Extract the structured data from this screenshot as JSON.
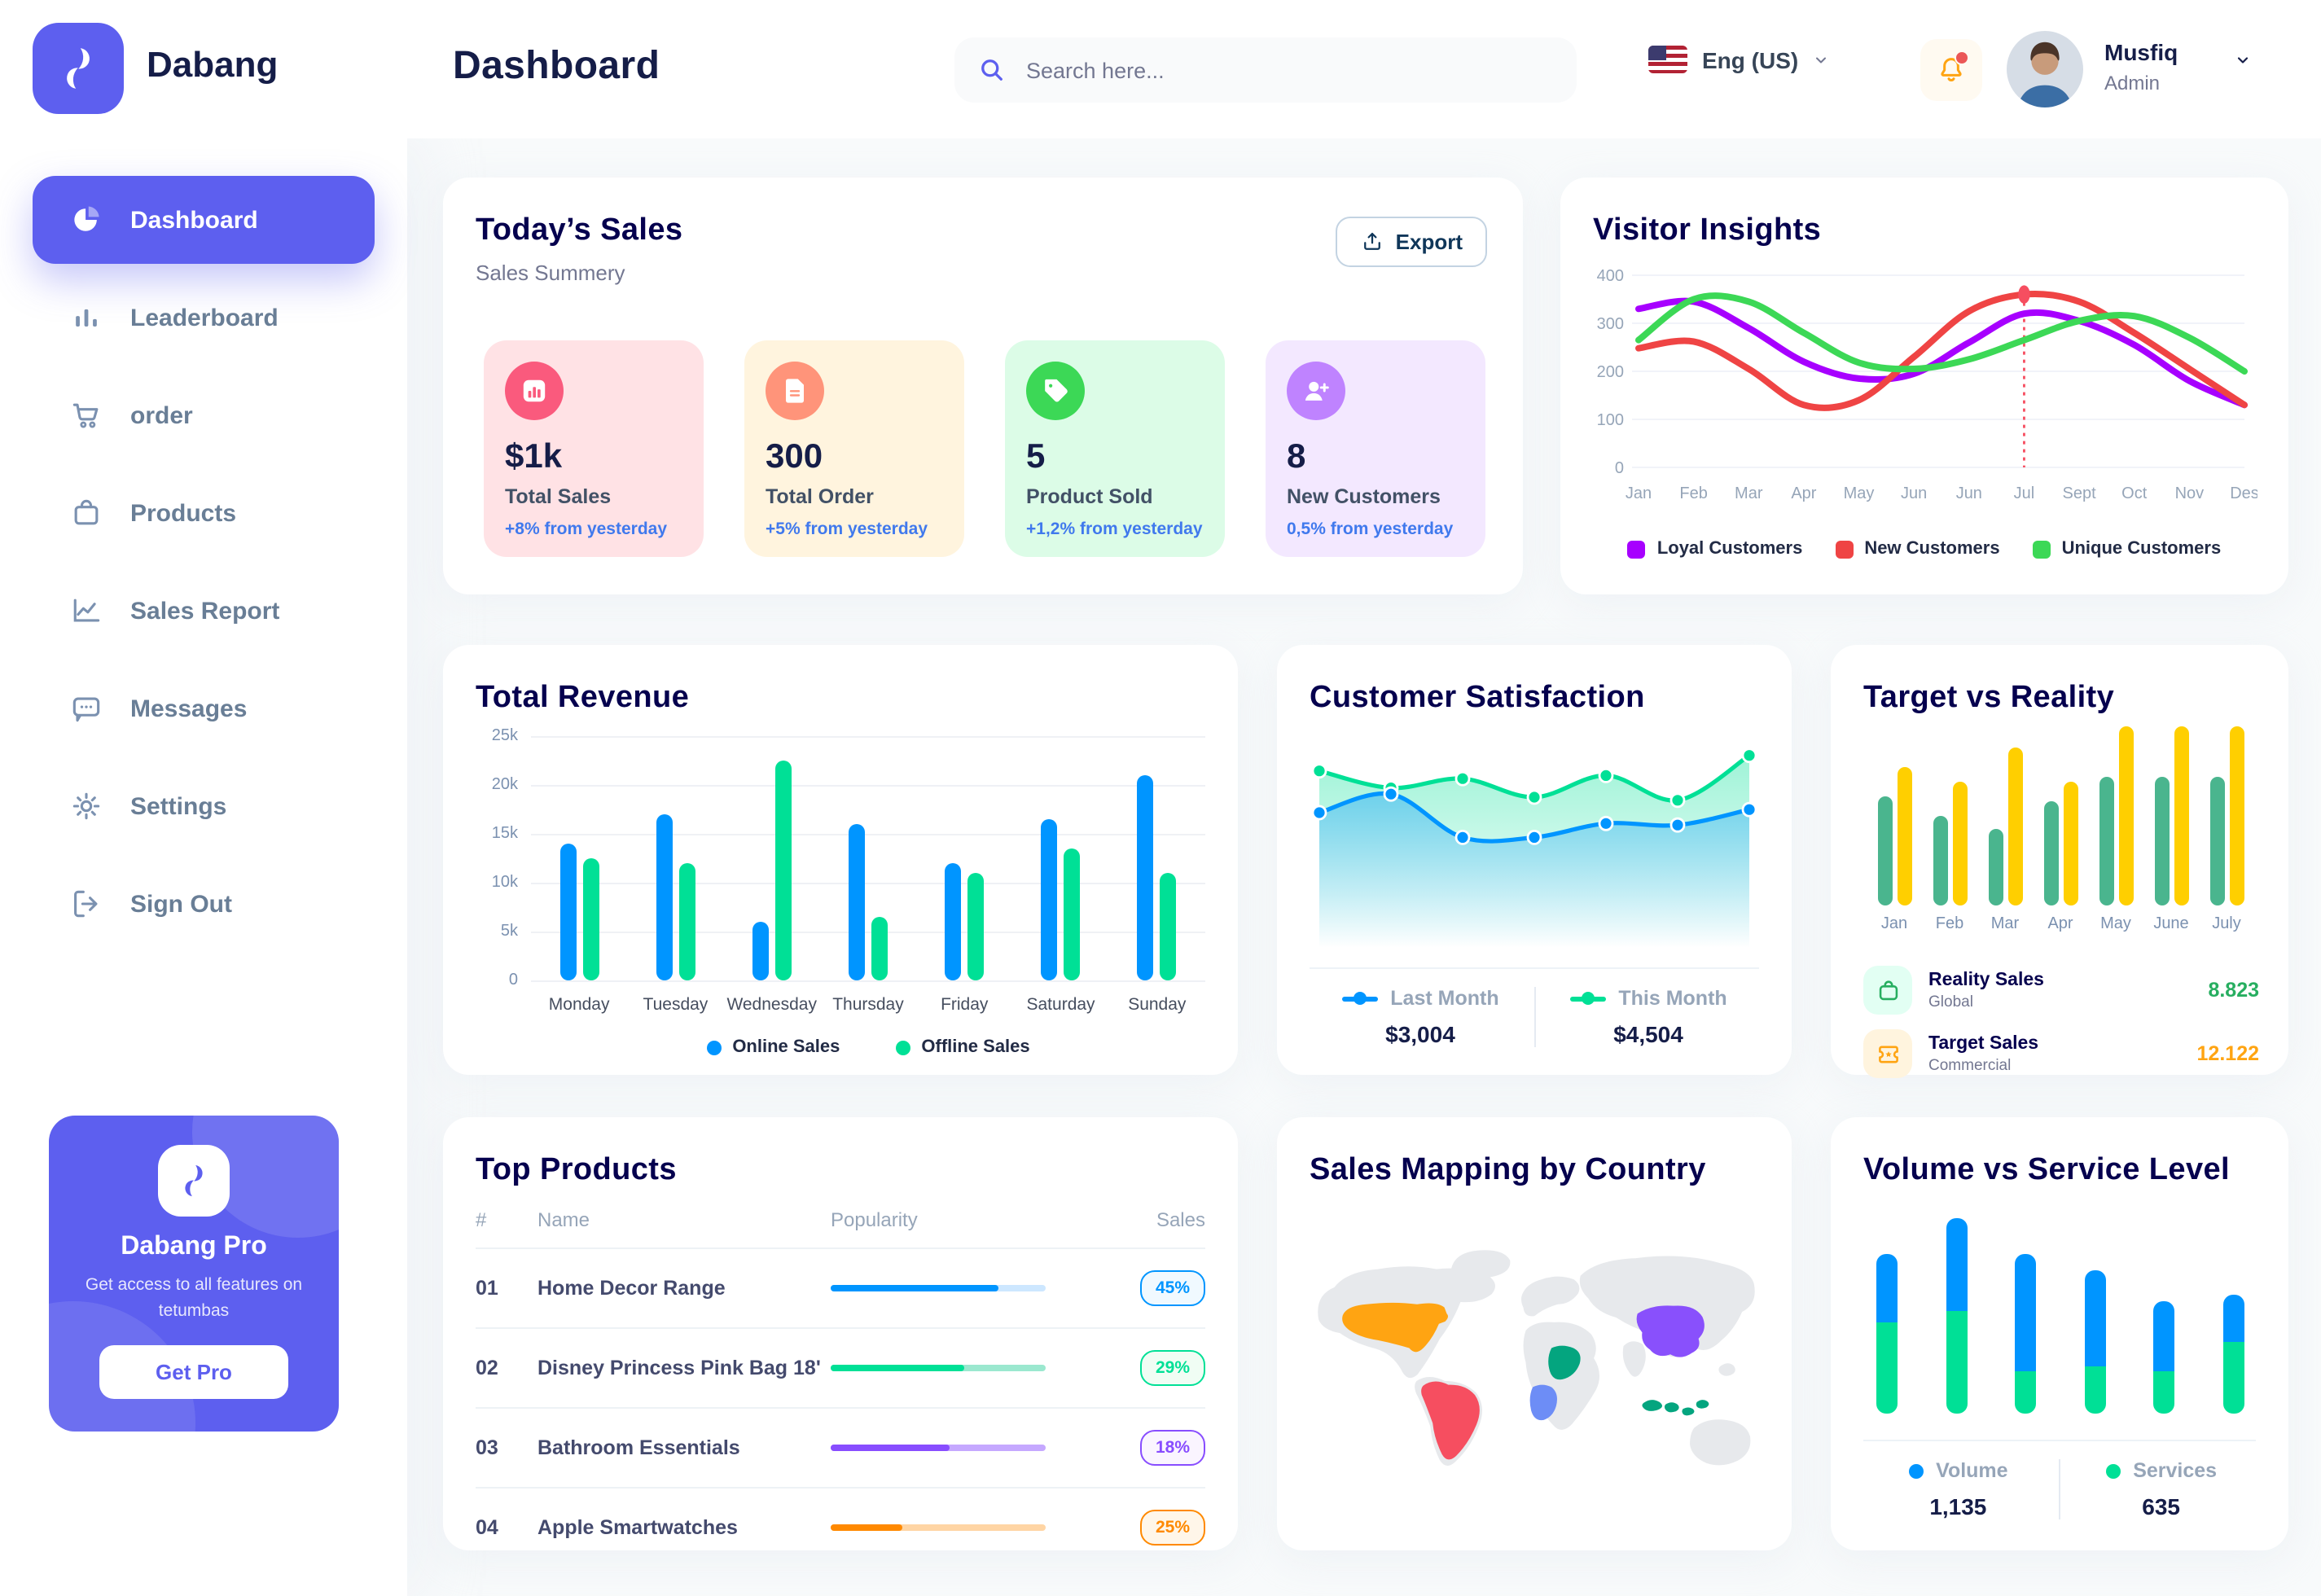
{
  "colors": {
    "accent": "#5D5FEF",
    "title": "#05004E",
    "text_dark": "#151D48",
    "text_gray": "#737791",
    "delta_blue": "#4079ED"
  },
  "app": {
    "brand": "Dabang"
  },
  "header": {
    "page_title": "Dashboard",
    "search_placeholder": "Search here...",
    "language": "Eng (US)",
    "user": {
      "name": "Musfiq",
      "role": "Admin"
    }
  },
  "sidebar": {
    "items": [
      {
        "label": "Dashboard",
        "icon": "pie-chart-icon",
        "active": true
      },
      {
        "label": "Leaderboard",
        "icon": "bar-chart-icon",
        "active": false
      },
      {
        "label": "order",
        "icon": "cart-icon",
        "active": false
      },
      {
        "label": "Products",
        "icon": "bag-icon",
        "active": false
      },
      {
        "label": "Sales Report",
        "icon": "line-chart-icon",
        "active": false
      },
      {
        "label": "Messages",
        "icon": "message-icon",
        "active": false
      },
      {
        "label": "Settings",
        "icon": "gear-icon",
        "active": false
      },
      {
        "label": "Sign Out",
        "icon": "sign-out-icon",
        "active": false
      }
    ],
    "pro_card": {
      "title": "Dabang Pro",
      "description": "Get access to all features on tetumbas",
      "button": "Get Pro"
    }
  },
  "today_sales": {
    "title": "Today’s Sales",
    "subtitle": "Sales Summery",
    "export_label": "Export",
    "cards": [
      {
        "value": "$1k",
        "label": "Total Sales",
        "delta": "+8% from yesterday",
        "bg": "#FFE2E5",
        "icon_bg": "#FA5A7D",
        "icon": "chart-bar-icon"
      },
      {
        "value": "300",
        "label": "Total Order",
        "delta": "+5% from yesterday",
        "bg": "#FFF4DE",
        "icon_bg": "#FF947A",
        "icon": "file-icon"
      },
      {
        "value": "5",
        "label": "Product Sold",
        "delta": "+1,2% from yesterday",
        "bg": "#DCFCE7",
        "icon_bg": "#3CD856",
        "icon": "tag-icon"
      },
      {
        "value": "8",
        "label": "New Customers",
        "delta": "0,5% from yesterday",
        "bg": "#F3E8FF",
        "icon_bg": "#BF83FF",
        "icon": "user-plus-icon"
      }
    ]
  },
  "visitor_insights": {
    "title": "Visitor Insights",
    "type": "line",
    "x_labels": [
      "Jan",
      "Feb",
      "Mar",
      "Apr",
      "May",
      "Jun",
      "Jun",
      "Jul",
      "Sept",
      "Oct",
      "Nov",
      "Des"
    ],
    "yticks": [
      0,
      100,
      200,
      300,
      400
    ],
    "ylim": [
      0,
      400
    ],
    "series": [
      {
        "name": "Loyal Customers",
        "color": "#A700FF",
        "values": [
          330,
          345,
          290,
          220,
          185,
          195,
          260,
          320,
          305,
          255,
          180,
          130
        ]
      },
      {
        "name": "New Customers",
        "color": "#EF4444",
        "values": [
          248,
          262,
          205,
          130,
          140,
          230,
          325,
          360,
          345,
          280,
          205,
          130
        ]
      },
      {
        "name": "Unique Customers",
        "color": "#3CD856",
        "values": [
          265,
          350,
          345,
          280,
          218,
          205,
          225,
          265,
          305,
          315,
          270,
          200
        ]
      }
    ],
    "marker": {
      "x_label": "Jul",
      "index": 7,
      "value": 360,
      "color": "#F64E60"
    }
  },
  "total_revenue": {
    "title": "Total Revenue",
    "type": "bar",
    "categories": [
      "Monday",
      "Tuesday",
      "Wednesday",
      "Thursday",
      "Friday",
      "Saturday",
      "Sunday"
    ],
    "yticks": [
      "0",
      "5k",
      "10k",
      "15k",
      "20k",
      "25k"
    ],
    "ylim_k": [
      0,
      25
    ],
    "series": [
      {
        "name": "Online Sales",
        "color": "#0095FF",
        "values": [
          14,
          17,
          6,
          16,
          12,
          16.5,
          21
        ]
      },
      {
        "name": "Offline Sales",
        "color": "#00E096",
        "values": [
          12.5,
          12,
          22.5,
          6.5,
          11,
          13.5,
          11
        ]
      }
    ]
  },
  "customer_satisfaction": {
    "title": "Customer Satisfaction",
    "type": "area",
    "series": [
      {
        "name": "Last Month",
        "color": "#0095FF",
        "total": "$3,004",
        "values": [
          60,
          72,
          44,
          44,
          53,
          52,
          62
        ]
      },
      {
        "name": "This Month",
        "color": "#00E096",
        "total": "$4,504",
        "values": [
          87,
          76,
          82,
          70,
          84,
          68,
          97
        ]
      }
    ]
  },
  "target_vs_reality": {
    "title": "Target vs Reality",
    "type": "bar",
    "categories": [
      "Jan",
      "Feb",
      "Mar",
      "Apr",
      "May",
      "June",
      "July"
    ],
    "series": [
      {
        "name": "Reality Sales",
        "color": "#4AB58E",
        "values": [
          8.5,
          7,
          6,
          8.2,
          10,
          10,
          10
        ]
      },
      {
        "name": "Target Sales",
        "color": "#FFCF00",
        "values": [
          10.8,
          9.7,
          12.3,
          9.7,
          14,
          14,
          14
        ]
      }
    ],
    "ymax": 14,
    "legend": [
      {
        "label": "Reality Sales",
        "sublabel": "Global",
        "value": "8.823",
        "value_color": "#27AE60",
        "icon": "bag-icon",
        "icon_bg": "#E2FFF3",
        "icon_color": "#27AE60"
      },
      {
        "label": "Target Sales",
        "sublabel": "Commercial",
        "value": "12.122",
        "value_color": "#FFA412",
        "icon": "ticket-icon",
        "icon_bg": "#FFF4DE",
        "icon_color": "#FFA412"
      }
    ]
  },
  "top_products": {
    "title": "Top Products",
    "headers": [
      "#",
      "Name",
      "Popularity",
      "Sales"
    ],
    "rows": [
      {
        "rank": "01",
        "name": "Home Decor Range",
        "popularity": 78,
        "sales": "45%",
        "color": "#0095FF",
        "track": "#CDE7FF",
        "badge_bg": "#F0F9FF"
      },
      {
        "rank": "02",
        "name": "Disney Princess Pink Bag 18'",
        "popularity": 62,
        "sales": "29%",
        "color": "#00E096",
        "track": "#9BE8CF",
        "badge_bg": "#F0FDF4"
      },
      {
        "rank": "03",
        "name": "Bathroom Essentials",
        "popularity": 55,
        "sales": "18%",
        "color": "#884DFF",
        "track": "#C5A8FF",
        "badge_bg": "#FAF5FF"
      },
      {
        "rank": "04",
        "name": "Apple Smartwatches",
        "popularity": 33,
        "sales": "25%",
        "color": "#FF8900",
        "track": "#FFD5A4",
        "badge_bg": "#FFF6E9"
      }
    ]
  },
  "sales_mapping": {
    "title": "Sales Mapping by Country",
    "countries": [
      {
        "name": "United States",
        "color": "#FFA412"
      },
      {
        "name": "Brazil",
        "color": "#F64E60"
      },
      {
        "name": "Saudi Arabia",
        "color": "#04A57F"
      },
      {
        "name": "Congo",
        "color": "#6D8DF6"
      },
      {
        "name": "China",
        "color": "#8950FC"
      },
      {
        "name": "Indonesia",
        "color": "#04A57F"
      }
    ]
  },
  "volume_service": {
    "title": "Volume vs Service Level",
    "type": "stacked-bar",
    "series": [
      {
        "name": "Volume",
        "color": "#0095FF",
        "total": "1,135",
        "values": [
          31,
          42,
          53,
          44,
          32,
          22
        ]
      },
      {
        "name": "Services",
        "color": "#00E096",
        "total": "635",
        "values": [
          41,
          46,
          19,
          21,
          19,
          32
        ]
      }
    ]
  }
}
